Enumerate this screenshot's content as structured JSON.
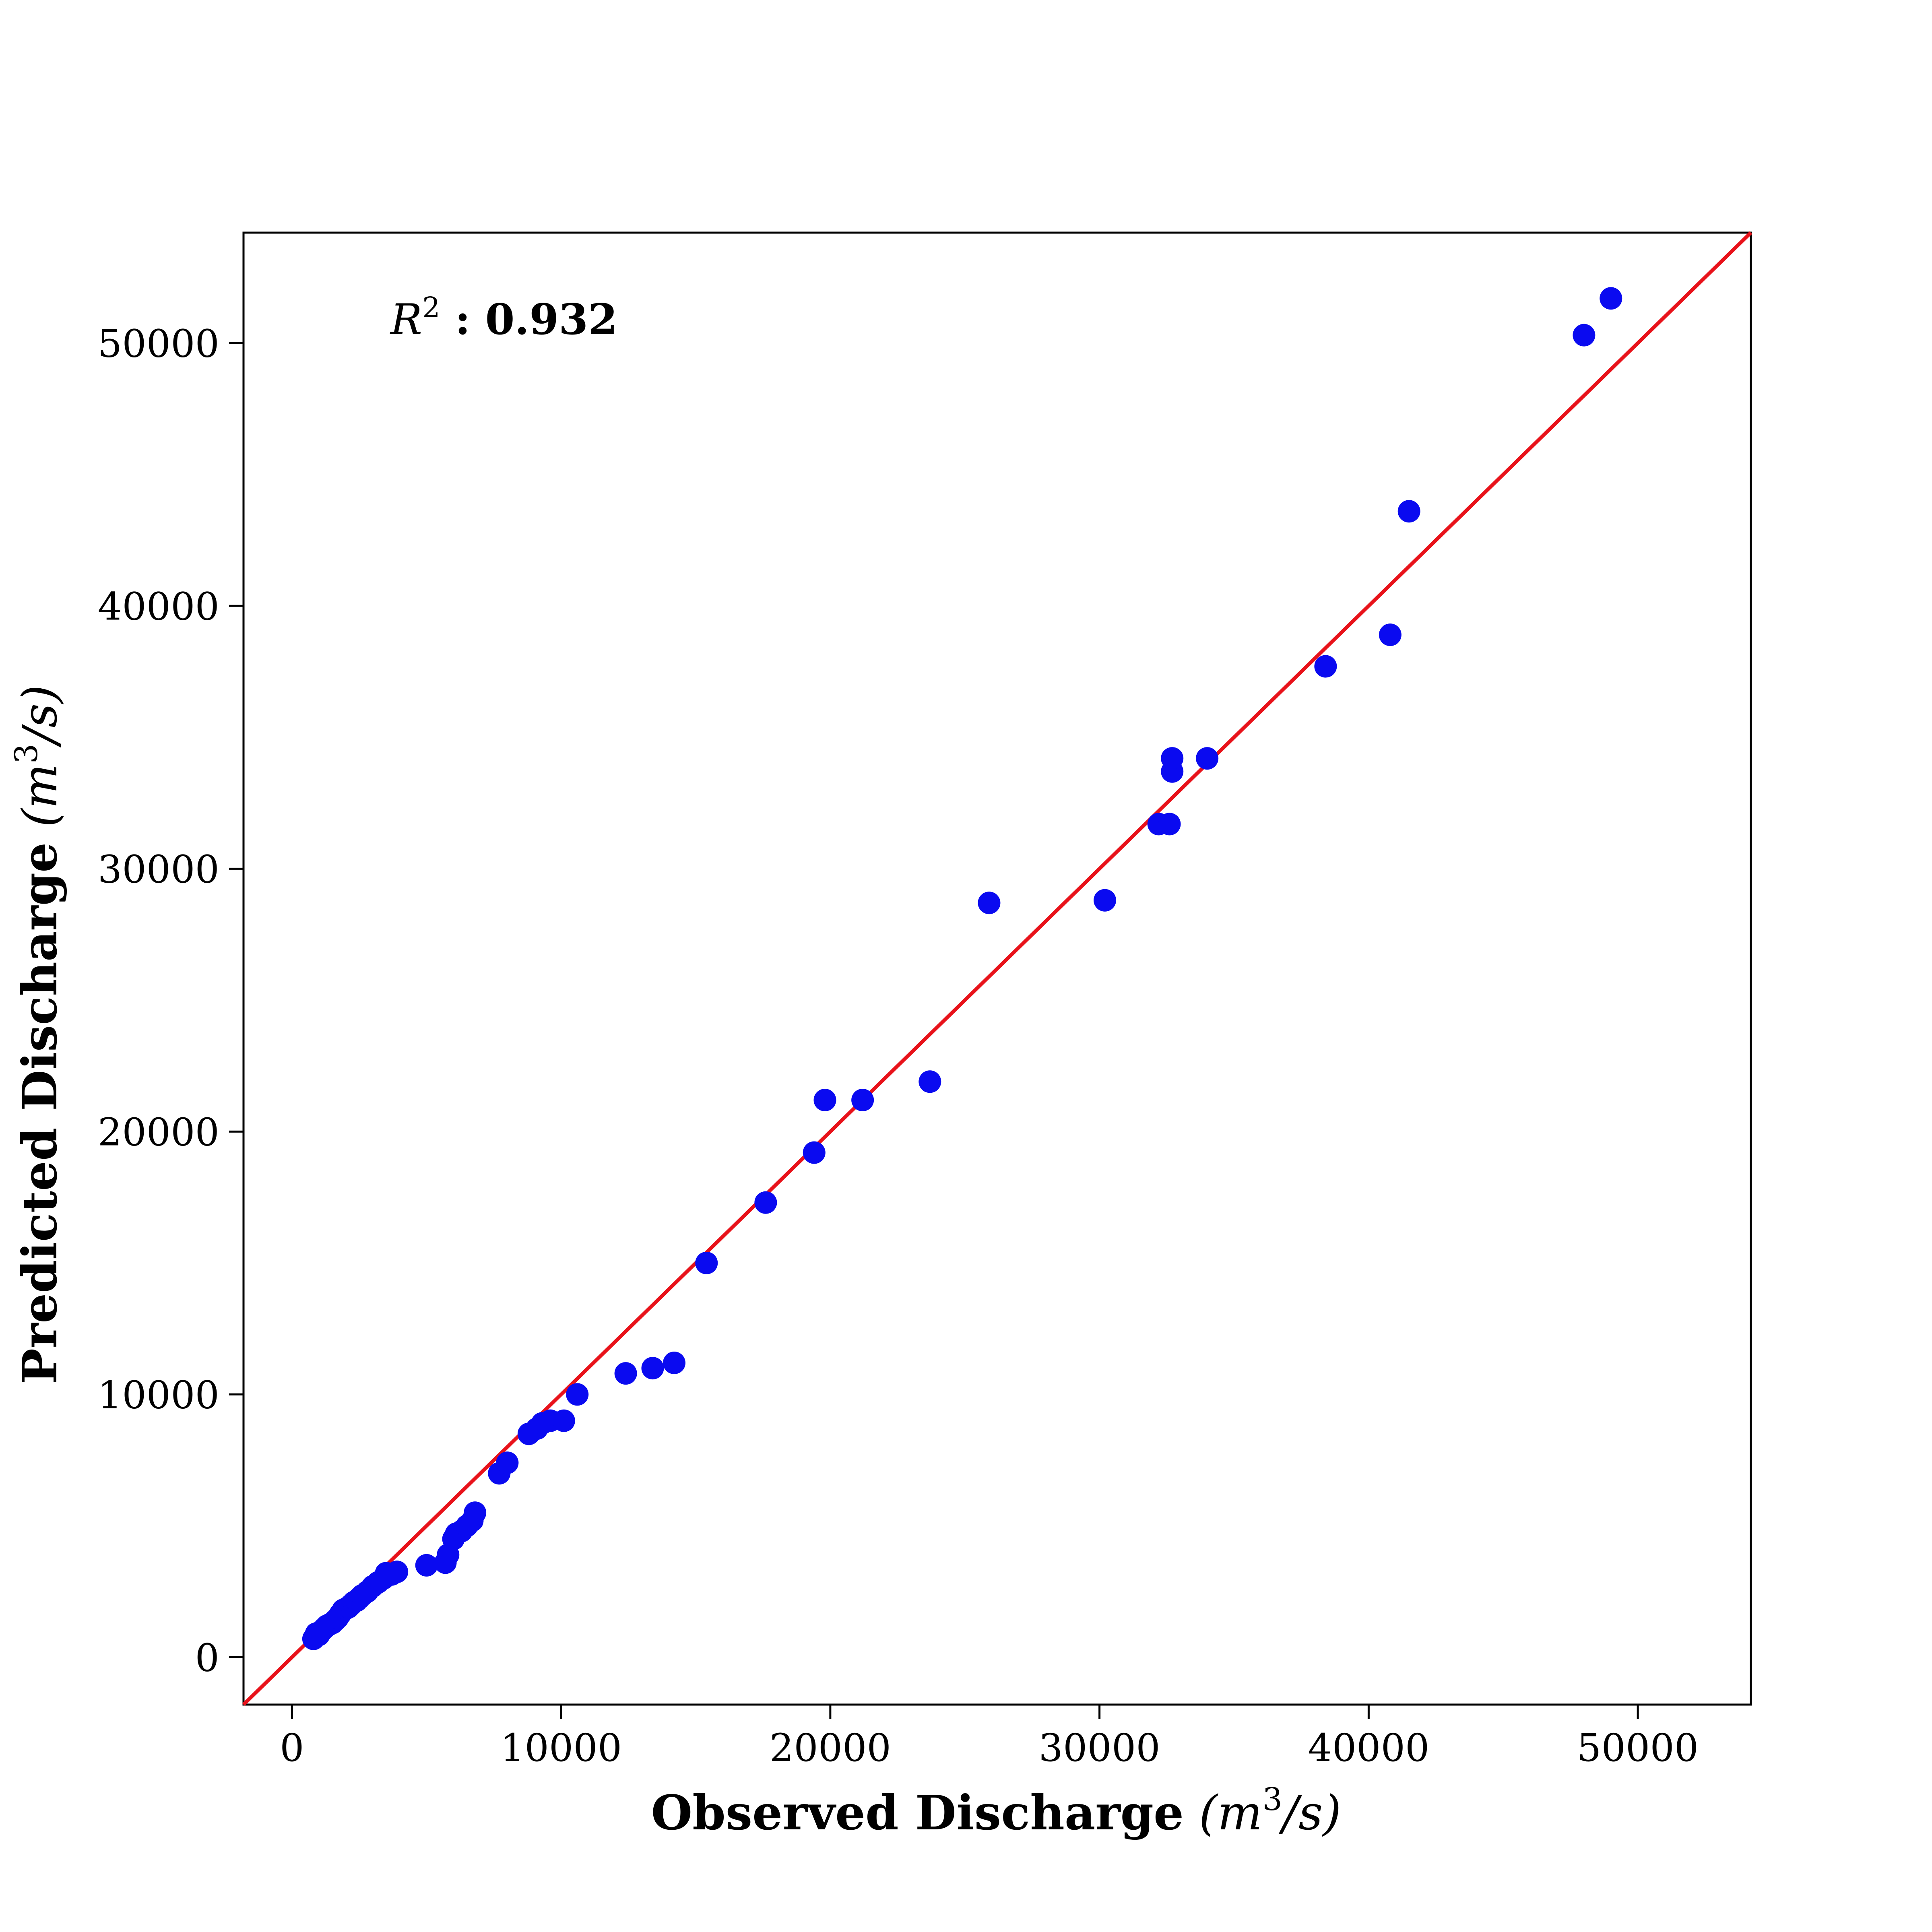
{
  "chart_data": {
    "type": "scatter",
    "xlabel": "Observed Discharge",
    "xlabel_unit": "(m",
    "xlabel_unit_sup": "3",
    "xlabel_unit_end": "/s)",
    "ylabel": "Predicted Discharge",
    "ylabel_unit": "(m",
    "ylabel_unit_sup": "3",
    "ylabel_unit_end": "/s)",
    "xlim": [
      -1800,
      54200
    ],
    "ylim": [
      -1800,
      54200
    ],
    "xticks": [
      0,
      10000,
      20000,
      30000,
      40000,
      50000
    ],
    "yticks": [
      0,
      10000,
      20000,
      30000,
      40000,
      50000
    ],
    "xtick_labels": [
      "0",
      "10000",
      "20000",
      "30000",
      "40000",
      "50000"
    ],
    "ytick_labels": [
      "0",
      "10000",
      "20000",
      "30000",
      "40000",
      "50000"
    ],
    "grid": false,
    "annotation": {
      "symbol": "R",
      "sup": "2",
      "separator": " : ",
      "value": "0.932"
    },
    "reference_line": {
      "from": [
        -1800,
        -1800
      ],
      "to": [
        54200,
        54200
      ],
      "color": "#e8121a"
    },
    "point_color": "#0a0af0",
    "series": [
      {
        "points": [
          [
            800,
            700
          ],
          [
            900,
            900
          ],
          [
            1000,
            850
          ],
          [
            1100,
            1000
          ],
          [
            1200,
            1100
          ],
          [
            1300,
            1200
          ],
          [
            1400,
            1250
          ],
          [
            1500,
            1300
          ],
          [
            1600,
            1400
          ],
          [
            1700,
            1500
          ],
          [
            1800,
            1650
          ],
          [
            1900,
            1800
          ],
          [
            2000,
            1850
          ],
          [
            2100,
            1900
          ],
          [
            2200,
            2000
          ],
          [
            2300,
            2100
          ],
          [
            2400,
            2150
          ],
          [
            2500,
            2250
          ],
          [
            2600,
            2350
          ],
          [
            2800,
            2500
          ],
          [
            3000,
            2700
          ],
          [
            3200,
            2850
          ],
          [
            3400,
            3000
          ],
          [
            3500,
            3200
          ],
          [
            3700,
            3150
          ],
          [
            3900,
            3250
          ],
          [
            5000,
            3500
          ],
          [
            5700,
            3600
          ],
          [
            5800,
            3900
          ],
          [
            6000,
            4500
          ],
          [
            6100,
            4700
          ],
          [
            6300,
            4800
          ],
          [
            6500,
            5000
          ],
          [
            6700,
            5200
          ],
          [
            6800,
            5500
          ],
          [
            7700,
            7000
          ],
          [
            8000,
            7400
          ],
          [
            8800,
            8500
          ],
          [
            9100,
            8700
          ],
          [
            9300,
            8900
          ],
          [
            9600,
            9000
          ],
          [
            10100,
            9000
          ],
          [
            10600,
            10000
          ],
          [
            12400,
            10800
          ],
          [
            13400,
            11000
          ],
          [
            14200,
            11200
          ],
          [
            15400,
            15000
          ],
          [
            17600,
            17300
          ],
          [
            19400,
            19200
          ],
          [
            19800,
            21200
          ],
          [
            21200,
            21200
          ],
          [
            23700,
            21900
          ],
          [
            25900,
            28700
          ],
          [
            30200,
            28800
          ],
          [
            32200,
            31700
          ],
          [
            32600,
            31700
          ],
          [
            32700,
            33700
          ],
          [
            32700,
            34200
          ],
          [
            34000,
            34200
          ],
          [
            38400,
            37700
          ],
          [
            40800,
            38900
          ],
          [
            41500,
            43600
          ],
          [
            48000,
            50300
          ],
          [
            49000,
            51700
          ]
        ]
      }
    ]
  }
}
